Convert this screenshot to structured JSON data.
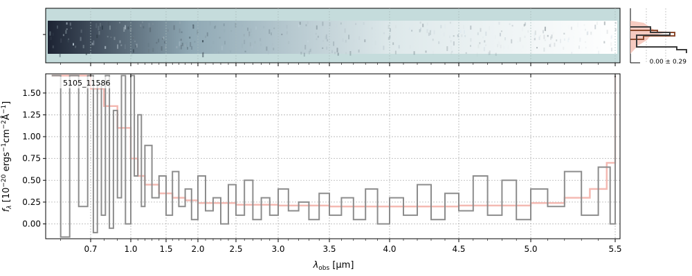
{
  "figure": {
    "object_id": "5105_11586",
    "xlabel": "λobs [µm]",
    "xlabel_main": "λ",
    "xlabel_sub": "obs",
    "xlabel_unit": " [µm]",
    "ylabel": "fλ [10−20 ergs−1cm−2Å−1]",
    "ylabel_f": "f",
    "ylabel_fsub": "λ",
    "ylabel_rest1": " [10",
    "ylabel_exp1": "−20",
    "ylabel_rest2": " ergs",
    "ylabel_exp2": "−1",
    "ylabel_rest3": "cm",
    "ylabel_exp3": "−2",
    "ylabel_rest4": "Å",
    "ylabel_exp4": "−1",
    "ylabel_rest5": "]",
    "side_annotation": "0.00 ± 0.29",
    "colors": {
      "data": "#8c8c8c",
      "model": "#f4b9b2",
      "panel_bg": "#c5dcdc",
      "grid": "#b0b0b0",
      "profile_dark": "#3b3b3b",
      "profile_brown": "#8b4a2e",
      "profile_fill": "#f5c2b6"
    }
  },
  "chart_data": {
    "type": "line",
    "step": true,
    "x_scale": "nonlinear (wavelength, compressed at blue end)",
    "x_ticks": [
      "0.7",
      "1.0",
      "1.5",
      "2.0",
      "2.5",
      "3.0",
      "3.5",
      "4.0",
      "4.5",
      "5.0",
      "5.5"
    ],
    "x_tick_values": [
      0.7,
      1.0,
      1.5,
      2.0,
      2.5,
      3.0,
      3.5,
      4.0,
      4.5,
      5.0,
      5.5
    ],
    "y_ticks": [
      "0.00",
      "0.25",
      "0.50",
      "0.75",
      "1.00",
      "1.25",
      "1.50"
    ],
    "y_tick_values": [
      0.0,
      0.25,
      0.5,
      0.75,
      1.0,
      1.25,
      1.5
    ],
    "ylim": [
      -0.17,
      1.72
    ],
    "xlim": [
      0.55,
      5.52
    ],
    "grid": true,
    "series": [
      {
        "role": "observed flux",
        "x": [
          0.57,
          0.6,
          0.63,
          0.66,
          0.69,
          0.72,
          0.75,
          0.78,
          0.81,
          0.84,
          0.87,
          0.9,
          0.93,
          0.96,
          1.0,
          1.05,
          1.1,
          1.15,
          1.2,
          1.3,
          1.4,
          1.5,
          1.6,
          1.7,
          1.8,
          1.9,
          2.0,
          2.1,
          2.2,
          2.3,
          2.4,
          2.5,
          2.6,
          2.7,
          2.8,
          2.9,
          3.0,
          3.1,
          3.2,
          3.3,
          3.4,
          3.5,
          3.6,
          3.7,
          3.8,
          3.9,
          4.0,
          4.1,
          4.2,
          4.3,
          4.4,
          4.5,
          4.6,
          4.7,
          4.8,
          4.9,
          5.0,
          5.1,
          5.2,
          5.3,
          5.4,
          5.47,
          5.5
        ],
        "values": [
          1.7,
          -0.15,
          1.7,
          0.2,
          1.7,
          -0.1,
          1.6,
          0.1,
          1.7,
          -0.05,
          1.3,
          0.3,
          1.7,
          0.0,
          1.7,
          0.55,
          1.25,
          0.2,
          0.9,
          0.3,
          0.55,
          0.1,
          0.6,
          0.2,
          0.4,
          0.05,
          0.55,
          0.15,
          0.3,
          0.0,
          0.45,
          0.1,
          0.5,
          0.05,
          0.3,
          0.1,
          0.4,
          0.15,
          0.25,
          0.05,
          0.35,
          0.1,
          0.3,
          0.05,
          0.4,
          0.0,
          0.3,
          0.1,
          0.45,
          0.05,
          0.35,
          0.15,
          0.55,
          0.1,
          0.5,
          0.05,
          0.4,
          0.2,
          0.6,
          0.1,
          0.65,
          0.0,
          1.7
        ]
      },
      {
        "role": "model",
        "x": [
          0.57,
          0.7,
          0.8,
          0.9,
          1.0,
          1.1,
          1.2,
          1.4,
          1.6,
          1.8,
          2.0,
          2.5,
          3.0,
          3.5,
          4.0,
          4.5,
          5.0,
          5.2,
          5.35,
          5.45,
          5.5
        ],
        "values": [
          1.7,
          1.55,
          1.35,
          1.1,
          0.75,
          0.55,
          0.45,
          0.35,
          0.3,
          0.27,
          0.24,
          0.22,
          0.21,
          0.2,
          0.2,
          0.21,
          0.24,
          0.3,
          0.4,
          0.7,
          1.7
        ]
      }
    ]
  }
}
